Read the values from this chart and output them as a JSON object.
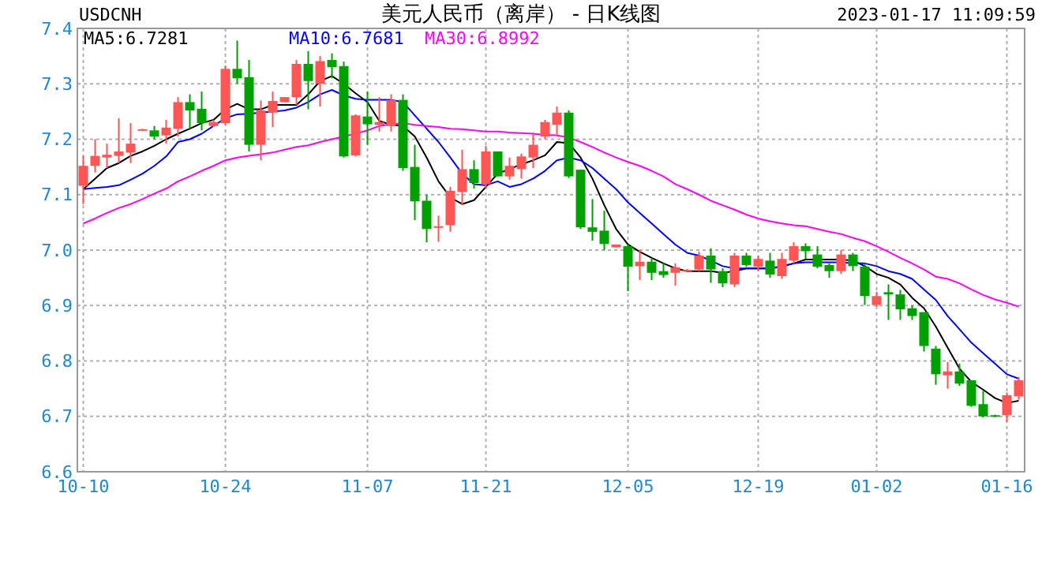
{
  "chart_data": {
    "type": "candlestick",
    "title": "美元人民币（离岸） - 日K线图",
    "annotations": [
      "USDCNH",
      "2023-01-17 11:09:59"
    ],
    "categories": [
      "10-10",
      null,
      null,
      null,
      null,
      null,
      null,
      null,
      null,
      null,
      null,
      null,
      "10-24",
      null,
      null,
      null,
      null,
      null,
      null,
      null,
      null,
      null,
      null,
      null,
      "11-07",
      null,
      null,
      null,
      null,
      null,
      null,
      null,
      null,
      null,
      "11-21",
      null,
      null,
      null,
      null,
      null,
      null,
      null,
      null,
      null,
      null,
      null,
      "12-05",
      null,
      null,
      null,
      null,
      null,
      null,
      null,
      null,
      null,
      null,
      "12-19",
      null,
      null,
      null,
      null,
      null,
      null,
      null,
      null,
      null,
      "01-02",
      null,
      null,
      null,
      null,
      null,
      null,
      null,
      null,
      null,
      null,
      "01-16",
      null
    ],
    "ohlc": [
      [
        7.116,
        7.17,
        7.083,
        7.152
      ],
      [
        7.152,
        7.2,
        7.14,
        7.17
      ],
      [
        7.167,
        7.192,
        7.148,
        7.172
      ],
      [
        7.17,
        7.238,
        7.157,
        7.178
      ],
      [
        7.176,
        7.229,
        7.157,
        7.192
      ],
      [
        7.217,
        7.219,
        7.216,
        7.218
      ],
      [
        7.216,
        7.224,
        7.2,
        7.205
      ],
      [
        7.207,
        7.235,
        7.192,
        7.221
      ],
      [
        7.219,
        7.276,
        7.205,
        7.267
      ],
      [
        7.267,
        7.281,
        7.219,
        7.252
      ],
      [
        7.255,
        7.286,
        7.216,
        7.229
      ],
      [
        7.224,
        7.235,
        7.222,
        7.231
      ],
      [
        7.229,
        7.333,
        7.226,
        7.327
      ],
      [
        7.327,
        7.378,
        7.3,
        7.31
      ],
      [
        7.312,
        7.343,
        7.178,
        7.19
      ],
      [
        7.19,
        7.27,
        7.162,
        7.252
      ],
      [
        7.248,
        7.286,
        7.222,
        7.269
      ],
      [
        7.267,
        7.276,
        7.267,
        7.276
      ],
      [
        7.276,
        7.343,
        7.262,
        7.336
      ],
      [
        7.336,
        7.359,
        7.254,
        7.305
      ],
      [
        7.3,
        7.35,
        7.259,
        7.341
      ],
      [
        7.343,
        7.355,
        7.31,
        7.33
      ],
      [
        7.332,
        7.34,
        7.167,
        7.169
      ],
      [
        7.171,
        7.245,
        7.169,
        7.243
      ],
      [
        7.241,
        7.286,
        7.19,
        7.227
      ],
      [
        7.226,
        7.276,
        7.214,
        7.231
      ],
      [
        7.224,
        7.281,
        7.214,
        7.271
      ],
      [
        7.271,
        7.281,
        7.143,
        7.148
      ],
      [
        7.15,
        7.19,
        7.054,
        7.088
      ],
      [
        7.089,
        7.1,
        7.014,
        7.038
      ],
      [
        7.042,
        7.062,
        7.015,
        7.043
      ],
      [
        7.045,
        7.114,
        7.033,
        7.107
      ],
      [
        7.105,
        7.181,
        7.081,
        7.146
      ],
      [
        7.146,
        7.162,
        7.111,
        7.121
      ],
      [
        7.119,
        7.188,
        7.111,
        7.178
      ],
      [
        7.178,
        7.178,
        7.133,
        7.133
      ],
      [
        7.133,
        7.167,
        7.127,
        7.152
      ],
      [
        7.146,
        7.174,
        7.129,
        7.169
      ],
      [
        7.167,
        7.212,
        7.148,
        7.19
      ],
      [
        7.205,
        7.235,
        7.2,
        7.231
      ],
      [
        7.226,
        7.259,
        7.205,
        7.248
      ],
      [
        7.248,
        7.252,
        7.13,
        7.133
      ],
      [
        7.145,
        7.145,
        7.038,
        7.041
      ],
      [
        7.041,
        7.092,
        7.017,
        7.033
      ],
      [
        7.035,
        7.071,
        7.0,
        7.011
      ],
      [
        7.005,
        7.01,
        7.005,
        7.01
      ],
      [
        7.007,
        7.01,
        6.926,
        6.97
      ],
      [
        6.971,
        7.0,
        6.946,
        6.979
      ],
      [
        6.979,
        6.986,
        6.946,
        6.959
      ],
      [
        6.962,
        6.976,
        6.95,
        6.955
      ],
      [
        6.959,
        6.976,
        6.936,
        6.969
      ],
      [
        6.962,
        6.966,
        6.961,
        6.964
      ],
      [
        6.965,
        6.997,
        6.962,
        6.99
      ],
      [
        6.99,
        7.003,
        6.941,
        6.965
      ],
      [
        6.962,
        6.967,
        6.933,
        6.94
      ],
      [
        6.938,
        6.995,
        6.933,
        6.99
      ],
      [
        6.99,
        6.995,
        6.97,
        6.973
      ],
      [
        6.97,
        6.99,
        6.962,
        6.984
      ],
      [
        6.981,
        6.995,
        6.95,
        6.956
      ],
      [
        6.953,
        6.995,
        6.948,
        6.984
      ],
      [
        6.981,
        7.014,
        6.976,
        7.007
      ],
      [
        7.007,
        7.012,
        6.984,
        6.998
      ],
      [
        6.992,
        7.007,
        6.967,
        6.97
      ],
      [
        6.973,
        6.976,
        6.95,
        6.962
      ],
      [
        6.962,
        7.0,
        6.957,
        6.992
      ],
      [
        6.992,
        6.995,
        6.962,
        6.971
      ],
      [
        6.97,
        6.976,
        6.901,
        6.917
      ],
      [
        6.901,
        6.925,
        6.898,
        6.917
      ],
      [
        6.924,
        6.938,
        6.874,
        6.92
      ],
      [
        6.92,
        6.928,
        6.874,
        6.893
      ],
      [
        6.895,
        6.9,
        6.874,
        6.881
      ],
      [
        6.888,
        6.888,
        6.817,
        6.827
      ],
      [
        6.822,
        6.827,
        6.757,
        6.776
      ],
      [
        6.774,
        6.798,
        6.75,
        6.781
      ],
      [
        6.781,
        6.795,
        6.755,
        6.759
      ],
      [
        6.765,
        6.765,
        6.717,
        6.719
      ],
      [
        6.722,
        6.746,
        6.698,
        6.7
      ],
      [
        6.702,
        6.703,
        6.699,
        6.7
      ],
      [
        6.702,
        6.743,
        6.69,
        6.738
      ],
      [
        6.736,
        6.771,
        6.73,
        6.765
      ]
    ],
    "colors": [
      "#ff5555",
      "#ff5555",
      "#ff5555",
      "#ff5555",
      "#ff5555",
      "#ff5555",
      "#00a000",
      "#ff5555",
      "#ff5555",
      "#00a000",
      "#00a000",
      "#ff5555",
      "#ff5555",
      "#00a000",
      "#00a000",
      "#ff5555",
      "#ff5555",
      "#ff5555",
      "#ff5555",
      "#00a000",
      "#ff5555",
      "#00a000",
      "#00a000",
      "#ff5555",
      "#00a000",
      "#ff5555",
      "#ff5555",
      "#00a000",
      "#00a000",
      "#00a000",
      "#ff5555",
      "#ff5555",
      "#ff5555",
      "#00a000",
      "#ff5555",
      "#00a000",
      "#ff5555",
      "#ff5555",
      "#ff5555",
      "#ff5555",
      "#ff5555",
      "#00a000",
      "#00a000",
      "#00a000",
      "#00a000",
      "#ff5555",
      "#00a000",
      "#ff5555",
      "#00a000",
      "#00a000",
      "#ff5555",
      "#ff5555",
      "#ff5555",
      "#00a000",
      "#00a000",
      "#ff5555",
      "#00a000",
      "#ff5555",
      "#00a000",
      "#ff5555",
      "#ff5555",
      "#00a000",
      "#00a000",
      "#00a000",
      "#ff5555",
      "#00a000",
      "#00a000",
      "#ff5555",
      "#00a000",
      "#00a000",
      "#00a000",
      "#00a000",
      "#00a000",
      "#ff5555",
      "#00a000",
      "#00a000",
      "#00a000",
      "#00a000",
      "#ff5555",
      "#ff5555"
    ],
    "series": [
      {
        "name": "MA5:6.7281",
        "color": "#000000",
        "type": "line",
        "values": [
          7.11,
          7.129,
          7.148,
          7.157,
          7.17,
          7.178,
          7.188,
          7.2,
          7.21,
          7.219,
          7.229,
          7.235,
          7.254,
          7.264,
          7.254,
          7.254,
          7.262,
          7.262,
          7.262,
          7.281,
          7.305,
          7.314,
          7.3,
          7.283,
          7.267,
          7.233,
          7.226,
          7.224,
          7.205,
          7.167,
          7.124,
          7.095,
          7.083,
          7.09,
          7.114,
          7.138,
          7.146,
          7.155,
          7.162,
          7.171,
          7.195,
          7.193,
          7.167,
          7.129,
          7.081,
          7.038,
          7.01,
          6.997,
          6.986,
          6.976,
          6.967,
          6.962,
          6.962,
          6.962,
          6.959,
          6.962,
          6.967,
          6.967,
          6.967,
          6.971,
          6.976,
          6.983,
          6.983,
          6.983,
          6.983,
          6.981,
          6.971,
          6.957,
          6.95,
          6.938,
          6.914,
          6.895,
          6.862,
          6.824,
          6.786,
          6.762,
          6.748,
          6.733,
          6.724,
          6.728
        ]
      },
      {
        "name": "MA10:6.7681",
        "color": "#0000ff",
        "type": "line",
        "values": [
          7.11,
          7.112,
          7.114,
          7.117,
          7.127,
          7.138,
          7.152,
          7.169,
          7.195,
          7.2,
          7.21,
          7.224,
          7.238,
          7.245,
          7.246,
          7.248,
          7.25,
          7.252,
          7.257,
          7.267,
          7.281,
          7.289,
          7.279,
          7.273,
          7.271,
          7.271,
          7.271,
          7.267,
          7.243,
          7.219,
          7.195,
          7.167,
          7.138,
          7.119,
          7.117,
          7.124,
          7.114,
          7.119,
          7.129,
          7.143,
          7.162,
          7.167,
          7.162,
          7.148,
          7.129,
          7.11,
          7.086,
          7.067,
          7.048,
          7.029,
          7.01,
          6.995,
          6.99,
          6.981,
          6.971,
          6.967,
          6.967,
          6.967,
          6.967,
          6.97,
          6.976,
          6.978,
          6.978,
          6.978,
          6.978,
          6.976,
          6.976,
          6.971,
          6.962,
          6.957,
          6.948,
          6.929,
          6.91,
          6.881,
          6.857,
          6.833,
          6.814,
          6.795,
          6.776,
          6.768
        ]
      },
      {
        "name": "MA30:6.8992",
        "color": "#ff00ff",
        "type": "line",
        "values": [
          7.048,
          7.057,
          7.067,
          7.076,
          7.083,
          7.092,
          7.102,
          7.111,
          7.124,
          7.133,
          7.143,
          7.152,
          7.162,
          7.167,
          7.17,
          7.173,
          7.176,
          7.181,
          7.186,
          7.189,
          7.195,
          7.2,
          7.205,
          7.21,
          7.216,
          7.224,
          7.227,
          7.229,
          7.226,
          7.224,
          7.222,
          7.219,
          7.218,
          7.216,
          7.214,
          7.214,
          7.212,
          7.211,
          7.21,
          7.208,
          7.207,
          7.203,
          7.195,
          7.186,
          7.176,
          7.167,
          7.159,
          7.152,
          7.143,
          7.133,
          7.119,
          7.11,
          7.1,
          7.089,
          7.081,
          7.073,
          7.064,
          7.057,
          7.052,
          7.048,
          7.045,
          7.043,
          7.038,
          7.033,
          7.029,
          7.022,
          7.016,
          7.007,
          6.997,
          6.986,
          6.976,
          6.965,
          6.952,
          6.948,
          6.94,
          6.929,
          6.919,
          6.911,
          6.905,
          6.898
        ]
      }
    ],
    "ylim": [
      6.6,
      7.4
    ],
    "yticks": [
      6.6,
      6.7,
      6.8,
      6.9,
      {
        "value": 7,
        "label": "7.0"
      },
      7.1,
      7.2,
      7.3,
      7.4
    ],
    "grid": true,
    "legend": "top left"
  }
}
